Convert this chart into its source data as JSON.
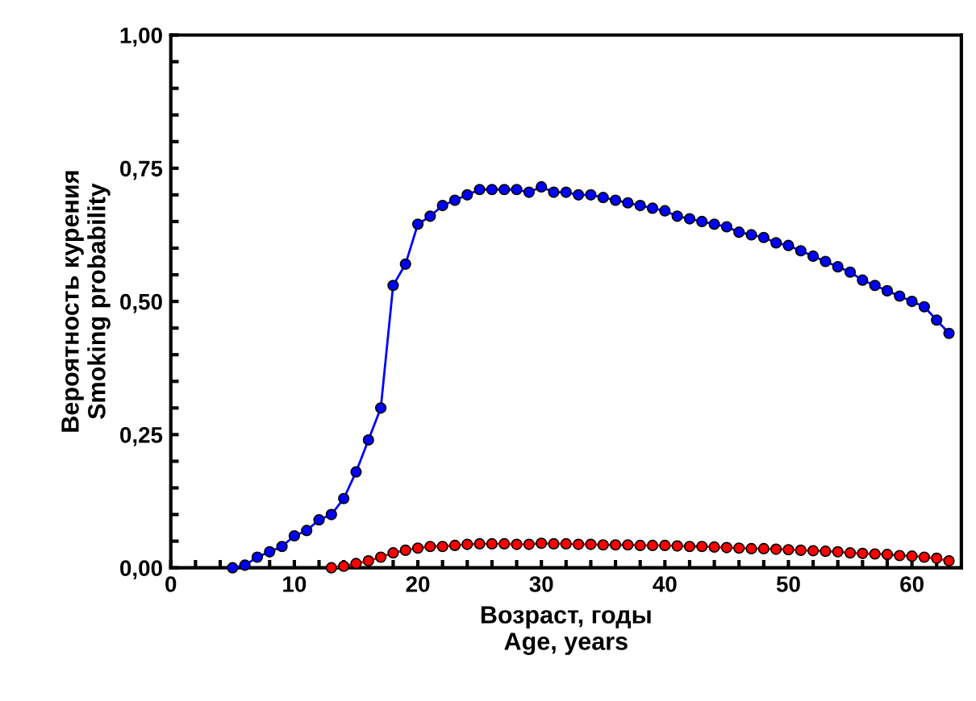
{
  "chart_data": {
    "type": "line",
    "xlabel": "Возраст, годы\nAge, years",
    "ylabel": "Вероятность курения\nSmoking probability",
    "xlim": [
      0,
      64
    ],
    "ylim": [
      0,
      1
    ],
    "xticks": [
      0,
      {
        "value": 2,
        "label": null
      },
      {
        "value": 4,
        "label": null
      },
      {
        "value": 6,
        "label": null
      },
      {
        "value": 8,
        "label": null
      },
      10,
      {
        "value": 12,
        "label": null
      },
      {
        "value": 14,
        "label": null
      },
      {
        "value": 16,
        "label": null
      },
      {
        "value": 18,
        "label": null
      },
      20,
      {
        "value": 22,
        "label": null
      },
      {
        "value": 24,
        "label": null
      },
      {
        "value": 26,
        "label": null
      },
      {
        "value": 28,
        "label": null
      },
      30,
      {
        "value": 32,
        "label": null
      },
      {
        "value": 34,
        "label": null
      },
      {
        "value": 36,
        "label": null
      },
      {
        "value": 38,
        "label": null
      },
      40,
      {
        "value": 42,
        "label": null
      },
      {
        "value": 44,
        "label": null
      },
      {
        "value": 46,
        "label": null
      },
      {
        "value": 48,
        "label": null
      },
      50,
      {
        "value": 52,
        "label": null
      },
      {
        "value": 54,
        "label": null
      },
      {
        "value": 56,
        "label": null
      },
      {
        "value": 58,
        "label": null
      },
      60,
      {
        "value": 62,
        "label": null
      }
    ],
    "yticks": [
      {
        "value": 0,
        "label": "0,00"
      },
      {
        "value": 0.05,
        "label": null
      },
      {
        "value": 0.1,
        "label": null
      },
      {
        "value": 0.15,
        "label": null
      },
      {
        "value": 0.2,
        "label": null
      },
      {
        "value": 0.25,
        "label": "0,25"
      },
      {
        "value": 0.3,
        "label": null
      },
      {
        "value": 0.35,
        "label": null
      },
      {
        "value": 0.4,
        "label": null
      },
      {
        "value": 0.45,
        "label": null
      },
      {
        "value": 0.5,
        "label": "0,50"
      },
      {
        "value": 0.55,
        "label": null
      },
      {
        "value": 0.6,
        "label": null
      },
      {
        "value": 0.65,
        "label": null
      },
      {
        "value": 0.7,
        "label": null
      },
      {
        "value": 0.75,
        "label": "0,75"
      },
      {
        "value": 0.8,
        "label": null
      },
      {
        "value": 0.85,
        "label": null
      },
      {
        "value": 0.9,
        "label": null
      },
      {
        "value": 0.95,
        "label": null
      },
      {
        "value": 1,
        "label": "1,00"
      }
    ],
    "marker": "circle",
    "line_style": "solid",
    "grid": false,
    "series": [
      {
        "color": "#0000ff",
        "x": [
          5,
          6,
          7,
          8,
          9,
          10,
          11,
          12,
          13,
          14,
          15,
          16,
          17,
          18,
          19,
          20,
          21,
          22,
          23,
          24,
          25,
          26,
          27,
          28,
          29,
          30,
          31,
          32,
          33,
          34,
          35,
          36,
          37,
          38,
          39,
          40,
          41,
          42,
          43,
          44,
          45,
          46,
          47,
          48,
          49,
          50,
          51,
          52,
          53,
          54,
          55,
          56,
          57,
          58,
          59,
          60,
          61,
          62,
          63
        ],
        "values": [
          0.0,
          0.005,
          0.02,
          0.03,
          0.04,
          0.06,
          0.07,
          0.09,
          0.1,
          0.13,
          0.18,
          0.24,
          0.3,
          0.53,
          0.57,
          0.645,
          0.66,
          0.68,
          0.69,
          0.7,
          0.71,
          0.71,
          0.71,
          0.71,
          0.705,
          0.715,
          0.705,
          0.705,
          0.7,
          0.7,
          0.695,
          0.69,
          0.685,
          0.68,
          0.675,
          0.67,
          0.66,
          0.655,
          0.65,
          0.645,
          0.64,
          0.63,
          0.625,
          0.62,
          0.61,
          0.605,
          0.595,
          0.585,
          0.575,
          0.565,
          0.555,
          0.54,
          0.53,
          0.52,
          0.51,
          0.5,
          0.49,
          0.465,
          0.44
        ]
      },
      {
        "color": "#ff0000",
        "x": [
          13,
          14,
          15,
          16,
          17,
          18,
          19,
          20,
          21,
          22,
          23,
          24,
          25,
          26,
          27,
          28,
          29,
          30,
          31,
          32,
          33,
          34,
          35,
          36,
          37,
          38,
          39,
          40,
          41,
          42,
          43,
          44,
          45,
          46,
          47,
          48,
          49,
          50,
          51,
          52,
          53,
          54,
          55,
          56,
          57,
          58,
          59,
          60,
          61,
          62,
          63
        ],
        "values": [
          0.0,
          0.003,
          0.008,
          0.013,
          0.02,
          0.028,
          0.033,
          0.037,
          0.04,
          0.04,
          0.042,
          0.044,
          0.045,
          0.045,
          0.045,
          0.044,
          0.044,
          0.046,
          0.045,
          0.045,
          0.044,
          0.044,
          0.043,
          0.043,
          0.043,
          0.042,
          0.042,
          0.042,
          0.041,
          0.04,
          0.04,
          0.039,
          0.038,
          0.037,
          0.036,
          0.036,
          0.035,
          0.034,
          0.033,
          0.032,
          0.031,
          0.03,
          0.028,
          0.027,
          0.026,
          0.025,
          0.023,
          0.022,
          0.02,
          0.018,
          0.013
        ]
      }
    ]
  }
}
